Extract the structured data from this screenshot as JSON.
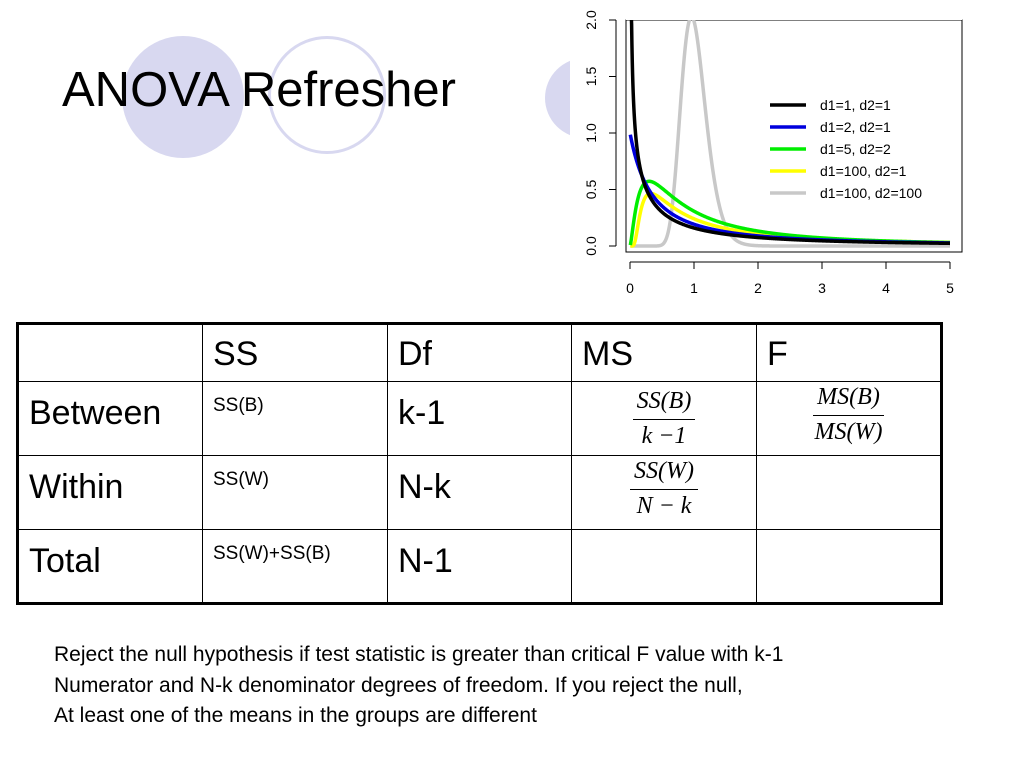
{
  "title": "ANOVA Refresher",
  "chart_data": {
    "type": "line",
    "title": "",
    "xlabel": "",
    "ylabel": "",
    "xlim": [
      0,
      5
    ],
    "ylim": [
      0,
      2.0
    ],
    "x_ticks": [
      "0",
      "1",
      "2",
      "3",
      "4",
      "5"
    ],
    "y_ticks": [
      "0.0",
      "0.5",
      "1.0",
      "1.5",
      "2.0"
    ],
    "legend_position": "top-right",
    "series": [
      {
        "name": "d1=1, d2=1",
        "color": "#000000",
        "d1": 1,
        "d2": 1
      },
      {
        "name": "d1=2, d2=1",
        "color": "#0000dd",
        "d1": 2,
        "d2": 1
      },
      {
        "name": "d1=5, d2=2",
        "color": "#00ee00",
        "d1": 5,
        "d2": 2
      },
      {
        "name": "d1=100, d2=1",
        "color": "#ffff00",
        "d1": 100,
        "d2": 1
      },
      {
        "name": "d1=100, d2=100",
        "color": "#c8c8c8",
        "d1": 100,
        "d2": 100
      }
    ]
  },
  "table": {
    "headers": [
      "",
      "SS",
      "Df",
      "MS",
      "F"
    ],
    "rows": [
      {
        "label": "Between",
        "ss": "SS(B)",
        "df": "k-1",
        "ms": {
          "num": "SS(B)",
          "den": "k −1"
        },
        "f": {
          "num": "MS(B)",
          "den": "MS(W)"
        }
      },
      {
        "label": "Within",
        "ss": "SS(W)",
        "df": "N-k",
        "ms": {
          "num": "SS(W)",
          "den": "N − k"
        }
      },
      {
        "label": "Total",
        "ss": "SS(W)+SS(B)",
        "df": "N-1"
      }
    ]
  },
  "note": [
    "Reject the null hypothesis if test statistic is greater than critical F value with k-1",
    "Numerator and N-k denominator degrees of freedom.  If you reject the null,",
    "At least one of the means in the groups are different"
  ]
}
